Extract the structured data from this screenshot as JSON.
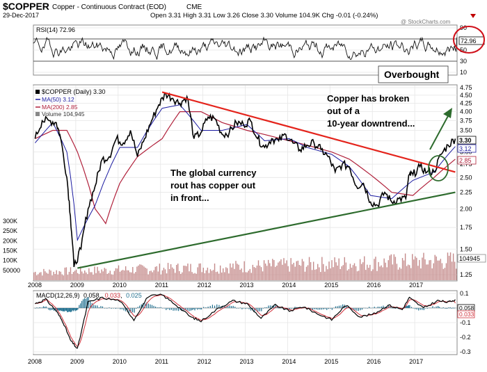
{
  "header": {
    "symbol": "$COPPER",
    "description": "Copper - Continuous Contract (EOD)",
    "exchange": "CME",
    "date": "29-Dec-2017",
    "quote": "Open 3.31  High 3.31  Low 3.26  Close 3.30  Volume 104.9K  Chg -0.01 (-0.24%)",
    "change_icon": "down-triangle-icon",
    "watermark": "@ StockCharts.com"
  },
  "colors": {
    "price": "#000000",
    "ma50": "#1a1aa0",
    "ma200": "#b0203a",
    "volume": "#c48a8a",
    "resistance": "#e4231b",
    "support": "#2d6b2d",
    "macd": "#000000",
    "macd_fill": "#c62828",
    "signal": "#d0303a",
    "histogram": "#1f6f8f",
    "annotation_circle": "#d0101a",
    "arrow": "#2d6b2d"
  },
  "rsi_panel": {
    "legend": "RSI(14) 72.96",
    "ticks": [
      "90",
      "70",
      "50",
      "30",
      "10"
    ],
    "current_label": "72.96",
    "annotation": "Overbought"
  },
  "price_panel": {
    "legend_title": "$COPPER (Daily) 3.30",
    "legend_ma50": "MA(50) 3.12",
    "legend_ma200": "MA(200) 2.85",
    "legend_volume": "Volume 104,945",
    "price_ticks": [
      "4.75",
      "4.50",
      "4.25",
      "4.00",
      "3.75",
      "3.50",
      "3.25",
      "3.00",
      "2.75",
      "2.50",
      "2.25",
      "2.00",
      "1.75",
      "1.50",
      "1.25"
    ],
    "volume_ticks": [
      "300K",
      "250K",
      "200K",
      "150K",
      "100K",
      "50000"
    ],
    "labels": {
      "close": "3.30",
      "ma50": "3.12",
      "ma200": "2.85",
      "volume": "104945"
    },
    "annotation_right": "Copper has broken out of a 10-year downtrend...",
    "annotation_left": "The global currency rout has copper out in front..."
  },
  "macd_panel": {
    "legend_prefix": "MACD(12,26,9)",
    "macd_value": "0.058",
    "signal_value": "0.033",
    "hist_value": "0.025",
    "ticks": [
      "0.1",
      "0.0",
      "-0.1",
      "-0.2",
      "-0.3"
    ],
    "labels": {
      "macd": "0.058",
      "signal": "0.033"
    }
  },
  "x_axis": {
    "years": [
      "2008",
      "2009",
      "2010",
      "2011",
      "2012",
      "2013",
      "2014",
      "2015",
      "2016",
      "2017"
    ]
  },
  "chart_data": {
    "type": "line",
    "title": "$COPPER (Daily) 3.30",
    "x_range": [
      "2008-01",
      "2017-12"
    ],
    "price_ylim": [
      1.25,
      4.75
    ],
    "log_scale": true,
    "price_series": [
      {
        "name": "$COPPER (Daily)",
        "x": [
          "2008-01",
          "2008-03",
          "2008-05",
          "2008-07",
          "2008-08",
          "2008-10",
          "2008-11",
          "2008-12",
          "2009-02",
          "2009-04",
          "2009-06",
          "2009-08",
          "2009-10",
          "2009-12",
          "2010-02",
          "2010-04",
          "2010-06",
          "2010-08",
          "2010-10",
          "2010-12",
          "2011-02",
          "2011-04",
          "2011-06",
          "2011-08",
          "2011-10",
          "2011-12",
          "2012-02",
          "2012-04",
          "2012-06",
          "2012-08",
          "2012-10",
          "2012-12",
          "2013-02",
          "2013-04",
          "2013-06",
          "2013-08",
          "2013-10",
          "2013-12",
          "2014-02",
          "2014-04",
          "2014-06",
          "2014-08",
          "2014-10",
          "2014-12",
          "2015-02",
          "2015-04",
          "2015-06",
          "2015-08",
          "2015-10",
          "2015-12",
          "2016-02",
          "2016-04",
          "2016-06",
          "2016-08",
          "2016-10",
          "2016-11",
          "2016-12",
          "2017-02",
          "2017-04",
          "2017-06",
          "2017-08",
          "2017-10",
          "2017-12"
        ],
        "values": [
          3.3,
          3.75,
          3.75,
          3.7,
          3.4,
          2.5,
          1.9,
          1.32,
          1.5,
          2.0,
          2.35,
          2.85,
          2.9,
          3.3,
          3.2,
          3.5,
          2.9,
          3.3,
          3.75,
          4.2,
          4.55,
          4.4,
          4.25,
          4.45,
          3.3,
          3.45,
          3.85,
          3.8,
          3.4,
          3.45,
          3.7,
          3.65,
          3.75,
          3.3,
          3.1,
          3.3,
          3.25,
          3.4,
          3.2,
          3.05,
          3.15,
          3.2,
          3.05,
          2.9,
          2.6,
          2.75,
          2.7,
          2.35,
          2.4,
          2.1,
          2.05,
          2.25,
          2.1,
          2.15,
          2.15,
          2.55,
          2.55,
          2.7,
          2.6,
          2.6,
          2.95,
          3.15,
          3.3
        ]
      },
      {
        "name": "MA(50)",
        "x": [
          "2008-01",
          "2008-06",
          "2008-10",
          "2009-01",
          "2009-06",
          "2010-01",
          "2010-06",
          "2011-01",
          "2011-06",
          "2011-12",
          "2012-06",
          "2013-01",
          "2013-06",
          "2014-01",
          "2014-06",
          "2015-01",
          "2015-06",
          "2015-12",
          "2016-06",
          "2016-12",
          "2017-06",
          "2017-12"
        ],
        "values": [
          3.2,
          3.7,
          3.0,
          1.6,
          2.05,
          3.1,
          3.1,
          4.1,
          4.2,
          3.5,
          3.5,
          3.65,
          3.25,
          3.3,
          3.1,
          2.95,
          2.7,
          2.2,
          2.15,
          2.45,
          2.6,
          3.12
        ]
      },
      {
        "name": "MA(200)",
        "x": [
          "2008-01",
          "2008-06",
          "2008-10",
          "2009-01",
          "2009-06",
          "2009-09",
          "2010-01",
          "2010-06",
          "2011-01",
          "2011-06",
          "2011-12",
          "2012-06",
          "2013-01",
          "2013-06",
          "2014-01",
          "2014-06",
          "2015-01",
          "2015-06",
          "2015-12",
          "2016-06",
          "2016-12",
          "2017-06",
          "2017-12"
        ],
        "values": [
          3.3,
          3.5,
          3.5,
          3.0,
          2.0,
          1.8,
          2.4,
          2.9,
          3.3,
          4.0,
          4.0,
          3.7,
          3.5,
          3.4,
          3.25,
          3.15,
          3.0,
          2.85,
          2.55,
          2.25,
          2.2,
          2.5,
          2.85
        ]
      }
    ],
    "trendlines": [
      {
        "name": "downtrend",
        "from": {
          "x": "2011-01",
          "y": 4.6
        },
        "to": {
          "x": "2017-12",
          "y": 2.6
        }
      },
      {
        "name": "uptrend",
        "from": {
          "x": "2009-01",
          "y": 1.31
        },
        "to": {
          "x": "2017-12",
          "y": 2.25
        }
      }
    ],
    "rsi": {
      "name": "RSI(14)",
      "ylim": [
        10,
        90
      ],
      "last": 72.96
    },
    "volume": {
      "name": "Volume",
      "ylim": [
        0,
        300000
      ],
      "last": 104945
    },
    "macd": {
      "name": "MACD(12,26,9)",
      "ylim": [
        -0.3,
        0.1
      ],
      "macd": 0.058,
      "signal": 0.033,
      "histogram": 0.025,
      "x": [
        "2008-01",
        "2008-04",
        "2008-07",
        "2008-09",
        "2008-11",
        "2009-01",
        "2009-04",
        "2009-08",
        "2010-01",
        "2010-05",
        "2010-09",
        "2011-01",
        "2011-05",
        "2011-09",
        "2011-12",
        "2012-05",
        "2012-09",
        "2013-01",
        "2013-05",
        "2013-09",
        "2014-01",
        "2014-05",
        "2014-09",
        "2015-01",
        "2015-05",
        "2015-09",
        "2016-01",
        "2016-05",
        "2016-09",
        "2016-11",
        "2017-03",
        "2017-07",
        "2017-10",
        "2017-12"
      ],
      "values": [
        0.03,
        0.06,
        -0.02,
        -0.1,
        -0.22,
        -0.28,
        0.04,
        0.07,
        0.05,
        -0.08,
        0.08,
        0.09,
        0.02,
        -0.06,
        -0.09,
        0.0,
        0.05,
        0.03,
        -0.07,
        0.02,
        -0.02,
        0.01,
        -0.04,
        -0.08,
        0.02,
        -0.06,
        -0.04,
        0.02,
        -0.01,
        0.07,
        0.0,
        0.05,
        0.04,
        0.058
      ]
    }
  }
}
